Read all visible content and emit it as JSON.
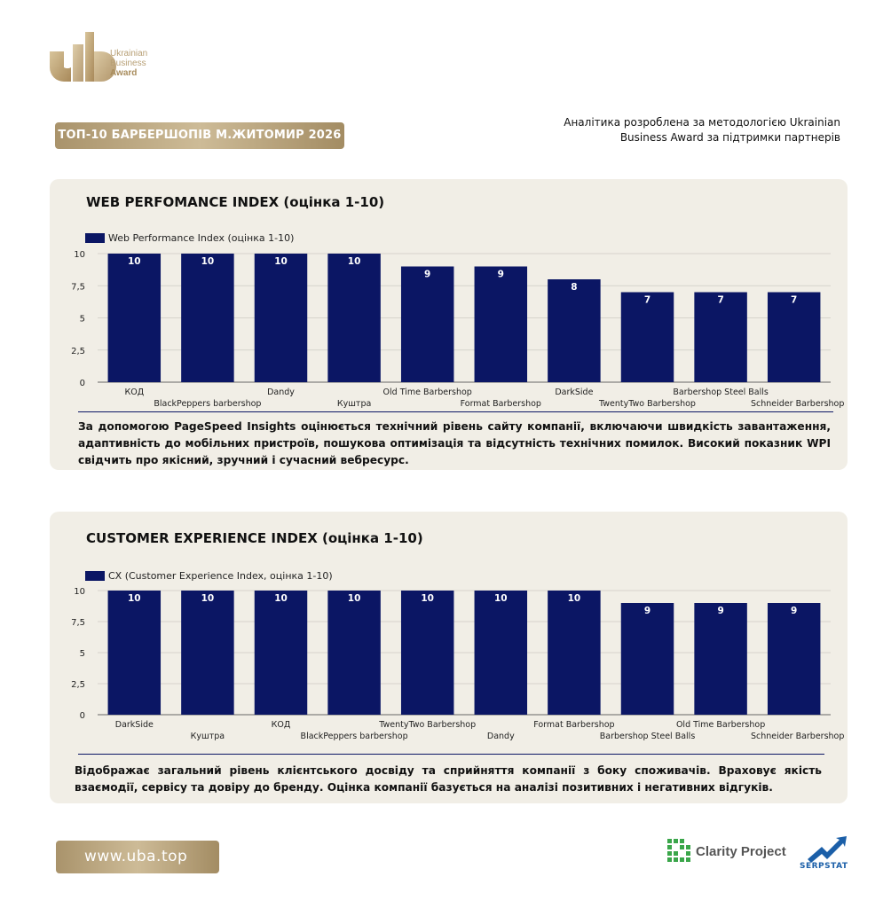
{
  "header": {
    "logo_lines": [
      "Ukrainian",
      "Business",
      "Award"
    ],
    "title": "ТОП-10 БАРБЕРШОПІВ М.ЖИТОМИР 2026",
    "methodology_line1": "Аналітика розроблена за методологією Ukrainian",
    "methodology_line2": "Business Award за підтримки партнерів"
  },
  "section_web": {
    "title": "WEB PERFOMANCE INDEX (оцінка 1-10)",
    "description": "За допомогою PageSpeed Insights оцінюється технічний рівень сайту компанії, включаючи швидкість завантаження, адаптивність до мобільних пристроїв, пошукова оптимізація та відсутність технічних помилок. Високий показник WPI свідчить про якісний, зручний і сучасний вебресурс."
  },
  "section_cx": {
    "title": "CUSTOMER EXPERIENCE INDEX (оцінка 1-10)",
    "description": "Відображає загальний рівень клієнтського досвіду та сприйняття компанії з боку споживачів. Враховує якість взаємодії, сервісу та довіру до бренду. Оцінка компанії базується на аналізі позитивних і негативних відгуків."
  },
  "chart_data": [
    {
      "type": "bar",
      "legend": "Web Performance Index (оцінка 1-10)",
      "legend_position": "top-left",
      "categories": [
        "КОД",
        "BlackPeppers barbershop",
        "Dandy",
        "Куштра",
        "Old Time Barbershop",
        "Format Barbershop",
        "DarkSide",
        "TwentyTwo Barbershop",
        "Barbershop Steel Balls",
        "Schneider Barbershop"
      ],
      "values": [
        10,
        10,
        10,
        10,
        9,
        9,
        8,
        7,
        7,
        7
      ],
      "yticks": [
        "0",
        "2,5",
        "5",
        "7,5",
        "10"
      ],
      "ylim": [
        0,
        10
      ],
      "grid": true,
      "bar_color": "#0b1664"
    },
    {
      "type": "bar",
      "legend": "CX (Customer Experience Index, оцінка 1-10)",
      "legend_position": "top-left",
      "categories": [
        "DarkSide",
        "Куштра",
        "КОД",
        "BlackPeppers barbershop",
        "TwentyTwo Barbershop",
        "Dandy",
        "Format Barbershop",
        "Barbershop Steel Balls",
        "Old Time Barbershop",
        "Schneider Barbershop"
      ],
      "values": [
        10,
        10,
        10,
        10,
        10,
        10,
        10,
        9,
        9,
        9
      ],
      "yticks": [
        "0",
        "2,5",
        "5",
        "7,5",
        "10"
      ],
      "ylim": [
        0,
        10
      ],
      "grid": true,
      "bar_color": "#0b1664"
    }
  ],
  "footer": {
    "website": "www.uba.top",
    "partner1": "Clarity Project",
    "partner2": "SERPSTAT"
  }
}
